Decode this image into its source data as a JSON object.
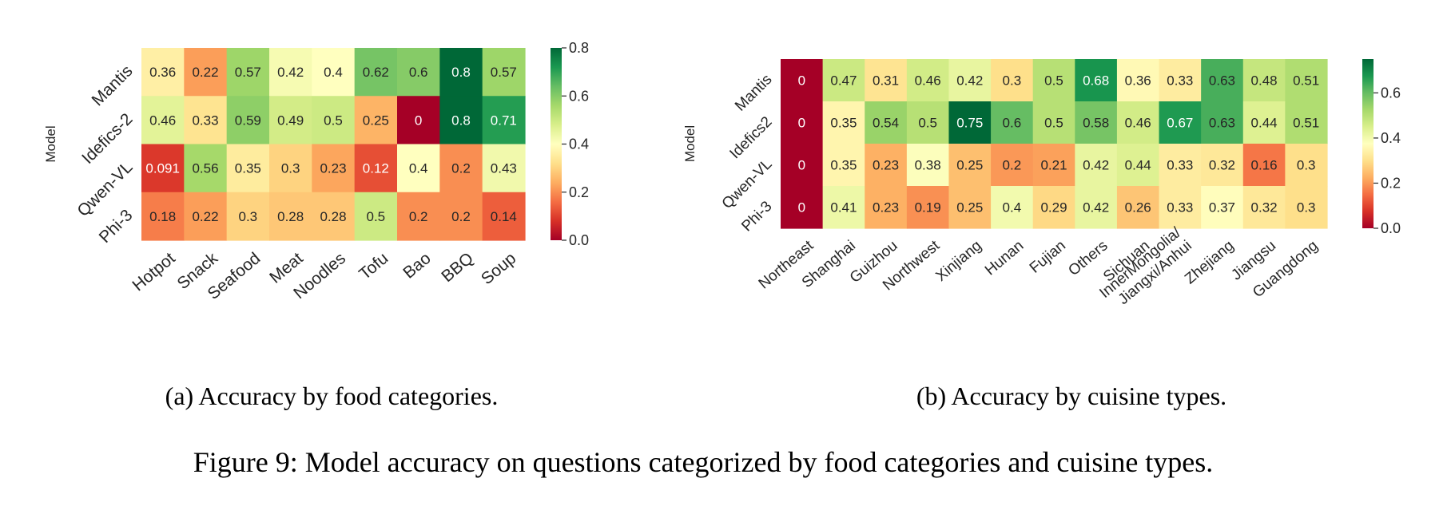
{
  "chart_data": [
    {
      "type": "heatmap",
      "caption": "(a) Accuracy by food categories.",
      "ylabel": "Model",
      "rows": [
        "Mantis",
        "Idefics-2",
        "Qwen-VL",
        "Phi-3"
      ],
      "columns": [
        "Hotpot",
        "Snack",
        "Seafood",
        "Meat",
        "Noodles",
        "Tofu",
        "Bao",
        "BBQ",
        "Soup"
      ],
      "values": [
        [
          0.36,
          0.22,
          0.57,
          0.42,
          0.4,
          0.62,
          0.6,
          0.8,
          0.57
        ],
        [
          0.46,
          0.33,
          0.59,
          0.49,
          0.5,
          0.25,
          0,
          0.8,
          0.71
        ],
        [
          0.091,
          0.56,
          0.35,
          0.3,
          0.23,
          0.12,
          0.4,
          0.2,
          0.43
        ],
        [
          0.18,
          0.22,
          0.3,
          0.28,
          0.28,
          0.5,
          0.2,
          0.2,
          0.14
        ]
      ],
      "labels": [
        [
          "0.36",
          "0.22",
          "0.57",
          "0.42",
          "0.4",
          "0.62",
          "0.6",
          "0.8",
          "0.57"
        ],
        [
          "0.46",
          "0.33",
          "0.59",
          "0.49",
          "0.5",
          "0.25",
          "0",
          "0.8",
          "0.71"
        ],
        [
          "0.091",
          "0.56",
          "0.35",
          "0.3",
          "0.23",
          "0.12",
          "0.4",
          "0.2",
          "0.43"
        ],
        [
          "0.18",
          "0.22",
          "0.3",
          "0.28",
          "0.28",
          "0.5",
          "0.2",
          "0.2",
          "0.14"
        ]
      ],
      "color_range": [
        0,
        0.8
      ],
      "colorbar_ticks": [
        "0.0",
        "0.2",
        "0.4",
        "0.6",
        "0.8"
      ],
      "colorbar_tick_values": [
        0,
        0.2,
        0.4,
        0.6,
        0.8
      ],
      "colormap": "RdYlGn"
    },
    {
      "type": "heatmap",
      "caption": "(b) Accuracy by cuisine types.",
      "ylabel": "Model",
      "rows": [
        "Mantis",
        "Idefics2",
        "Qwen-VL",
        "Phi-3"
      ],
      "columns": [
        "Northeast",
        "Shanghai",
        "Guizhou",
        "Northwest",
        "Xinjiang",
        "Hunan",
        "Fujian",
        "Others",
        "Sichuan",
        "InnerMongolia/\nJiangxi/Anhui",
        "Zhejiang",
        "Jiangsu",
        "Guangdong"
      ],
      "values": [
        [
          0,
          0.47,
          0.31,
          0.46,
          0.42,
          0.3,
          0.5,
          0.68,
          0.36,
          0.33,
          0.63,
          0.48,
          0.51
        ],
        [
          0,
          0.35,
          0.54,
          0.5,
          0.75,
          0.6,
          0.5,
          0.58,
          0.46,
          0.67,
          0.63,
          0.44,
          0.51
        ],
        [
          0,
          0.35,
          0.23,
          0.38,
          0.25,
          0.2,
          0.21,
          0.42,
          0.44,
          0.33,
          0.32,
          0.16,
          0.3
        ],
        [
          0,
          0.41,
          0.23,
          0.19,
          0.25,
          0.4,
          0.29,
          0.42,
          0.26,
          0.33,
          0.37,
          0.32,
          0.3
        ]
      ],
      "labels": [
        [
          "0",
          "0.47",
          "0.31",
          "0.46",
          "0.42",
          "0.3",
          "0.5",
          "0.68",
          "0.36",
          "0.33",
          "0.63",
          "0.48",
          "0.51"
        ],
        [
          "0",
          "0.35",
          "0.54",
          "0.5",
          "0.75",
          "0.6",
          "0.5",
          "0.58",
          "0.46",
          "0.67",
          "0.63",
          "0.44",
          "0.51"
        ],
        [
          "0",
          "0.35",
          "0.23",
          "0.38",
          "0.25",
          "0.2",
          "0.21",
          "0.42",
          "0.44",
          "0.33",
          "0.32",
          "0.16",
          "0.3"
        ],
        [
          "0",
          "0.41",
          "0.23",
          "0.19",
          "0.25",
          "0.4",
          "0.29",
          "0.42",
          "0.26",
          "0.33",
          "0.37",
          "0.32",
          "0.3"
        ]
      ],
      "color_range": [
        0,
        0.75
      ],
      "colorbar_ticks": [
        "0.0",
        "0.2",
        "0.4",
        "0.6"
      ],
      "colorbar_tick_values": [
        0,
        0.2,
        0.4,
        0.6
      ],
      "colormap": "RdYlGn"
    }
  ],
  "figure_caption": "Figure 9: Model accuracy on questions categorized by food categories and cuisine types."
}
